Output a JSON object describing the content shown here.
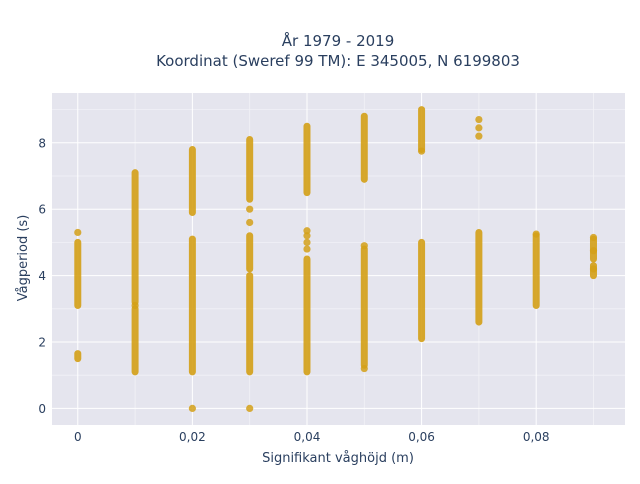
{
  "chart_data": {
    "type": "scatter",
    "title_line1": "År 1979 - 2019",
    "title_line2": "Koordinat (Sweref 99 TM): E 345005, N 6199803",
    "xlabel": "Signifikant våghöjd (m)",
    "ylabel": "Vågperiod (s)",
    "xlim": [
      -0.0045,
      0.0955
    ],
    "ylim": [
      -0.5,
      9.5
    ],
    "x_ticks": [
      {
        "value": 0,
        "label": "0"
      },
      {
        "value": 0.02,
        "label": "0,02"
      },
      {
        "value": 0.04,
        "label": "0,04"
      },
      {
        "value": 0.06,
        "label": "0,06"
      },
      {
        "value": 0.08,
        "label": "0,08"
      }
    ],
    "y_ticks": [
      {
        "value": 0,
        "label": "0"
      },
      {
        "value": 2,
        "label": "2"
      },
      {
        "value": 4,
        "label": "4"
      },
      {
        "value": 6,
        "label": "6"
      },
      {
        "value": 8,
        "label": "8"
      }
    ],
    "grid": true,
    "marker_color": "#d4a017",
    "plot_bg": "#e5e5ee",
    "segments": [
      {
        "x": 0.0,
        "from": 3.1,
        "to": 5.0
      },
      {
        "x": 0.0,
        "from": 1.5,
        "to": 1.65
      },
      {
        "x": 0.01,
        "from": 1.1,
        "to": 3.0
      },
      {
        "x": 0.01,
        "from": 3.2,
        "to": 7.1
      },
      {
        "x": 0.02,
        "from": 1.1,
        "to": 5.1
      },
      {
        "x": 0.02,
        "from": 5.9,
        "to": 7.8
      },
      {
        "x": 0.03,
        "from": 1.1,
        "to": 4.0
      },
      {
        "x": 0.03,
        "from": 4.2,
        "to": 5.2
      },
      {
        "x": 0.03,
        "from": 6.3,
        "to": 8.1
      },
      {
        "x": 0.04,
        "from": 1.1,
        "to": 4.5
      },
      {
        "x": 0.04,
        "from": 6.5,
        "to": 8.5
      },
      {
        "x": 0.05,
        "from": 1.3,
        "to": 4.8
      },
      {
        "x": 0.05,
        "from": 6.9,
        "to": 8.8
      },
      {
        "x": 0.06,
        "from": 2.1,
        "to": 5.0
      },
      {
        "x": 0.06,
        "from": 7.8,
        "to": 9.0
      },
      {
        "x": 0.07,
        "from": 2.6,
        "to": 5.3
      },
      {
        "x": 0.08,
        "from": 3.1,
        "to": 5.2
      },
      {
        "x": 0.09,
        "from": 4.0,
        "to": 4.3
      },
      {
        "x": 0.09,
        "from": 4.5,
        "to": 5.1
      }
    ],
    "points": [
      {
        "x": 0.0,
        "y": 5.3
      },
      {
        "x": 0.01,
        "y": 3.1
      },
      {
        "x": 0.02,
        "y": 0.0
      },
      {
        "x": 0.03,
        "y": 0.0
      },
      {
        "x": 0.03,
        "y": 5.6
      },
      {
        "x": 0.03,
        "y": 6.0
      },
      {
        "x": 0.04,
        "y": 4.8
      },
      {
        "x": 0.04,
        "y": 5.0
      },
      {
        "x": 0.04,
        "y": 5.2
      },
      {
        "x": 0.04,
        "y": 5.35
      },
      {
        "x": 0.05,
        "y": 1.2
      },
      {
        "x": 0.05,
        "y": 4.9
      },
      {
        "x": 0.06,
        "y": 7.75
      },
      {
        "x": 0.07,
        "y": 8.2
      },
      {
        "x": 0.07,
        "y": 8.45
      },
      {
        "x": 0.07,
        "y": 8.7
      },
      {
        "x": 0.08,
        "y": 5.25
      },
      {
        "x": 0.09,
        "y": 4.2
      },
      {
        "x": 0.09,
        "y": 4.75
      },
      {
        "x": 0.09,
        "y": 5.15
      }
    ]
  }
}
